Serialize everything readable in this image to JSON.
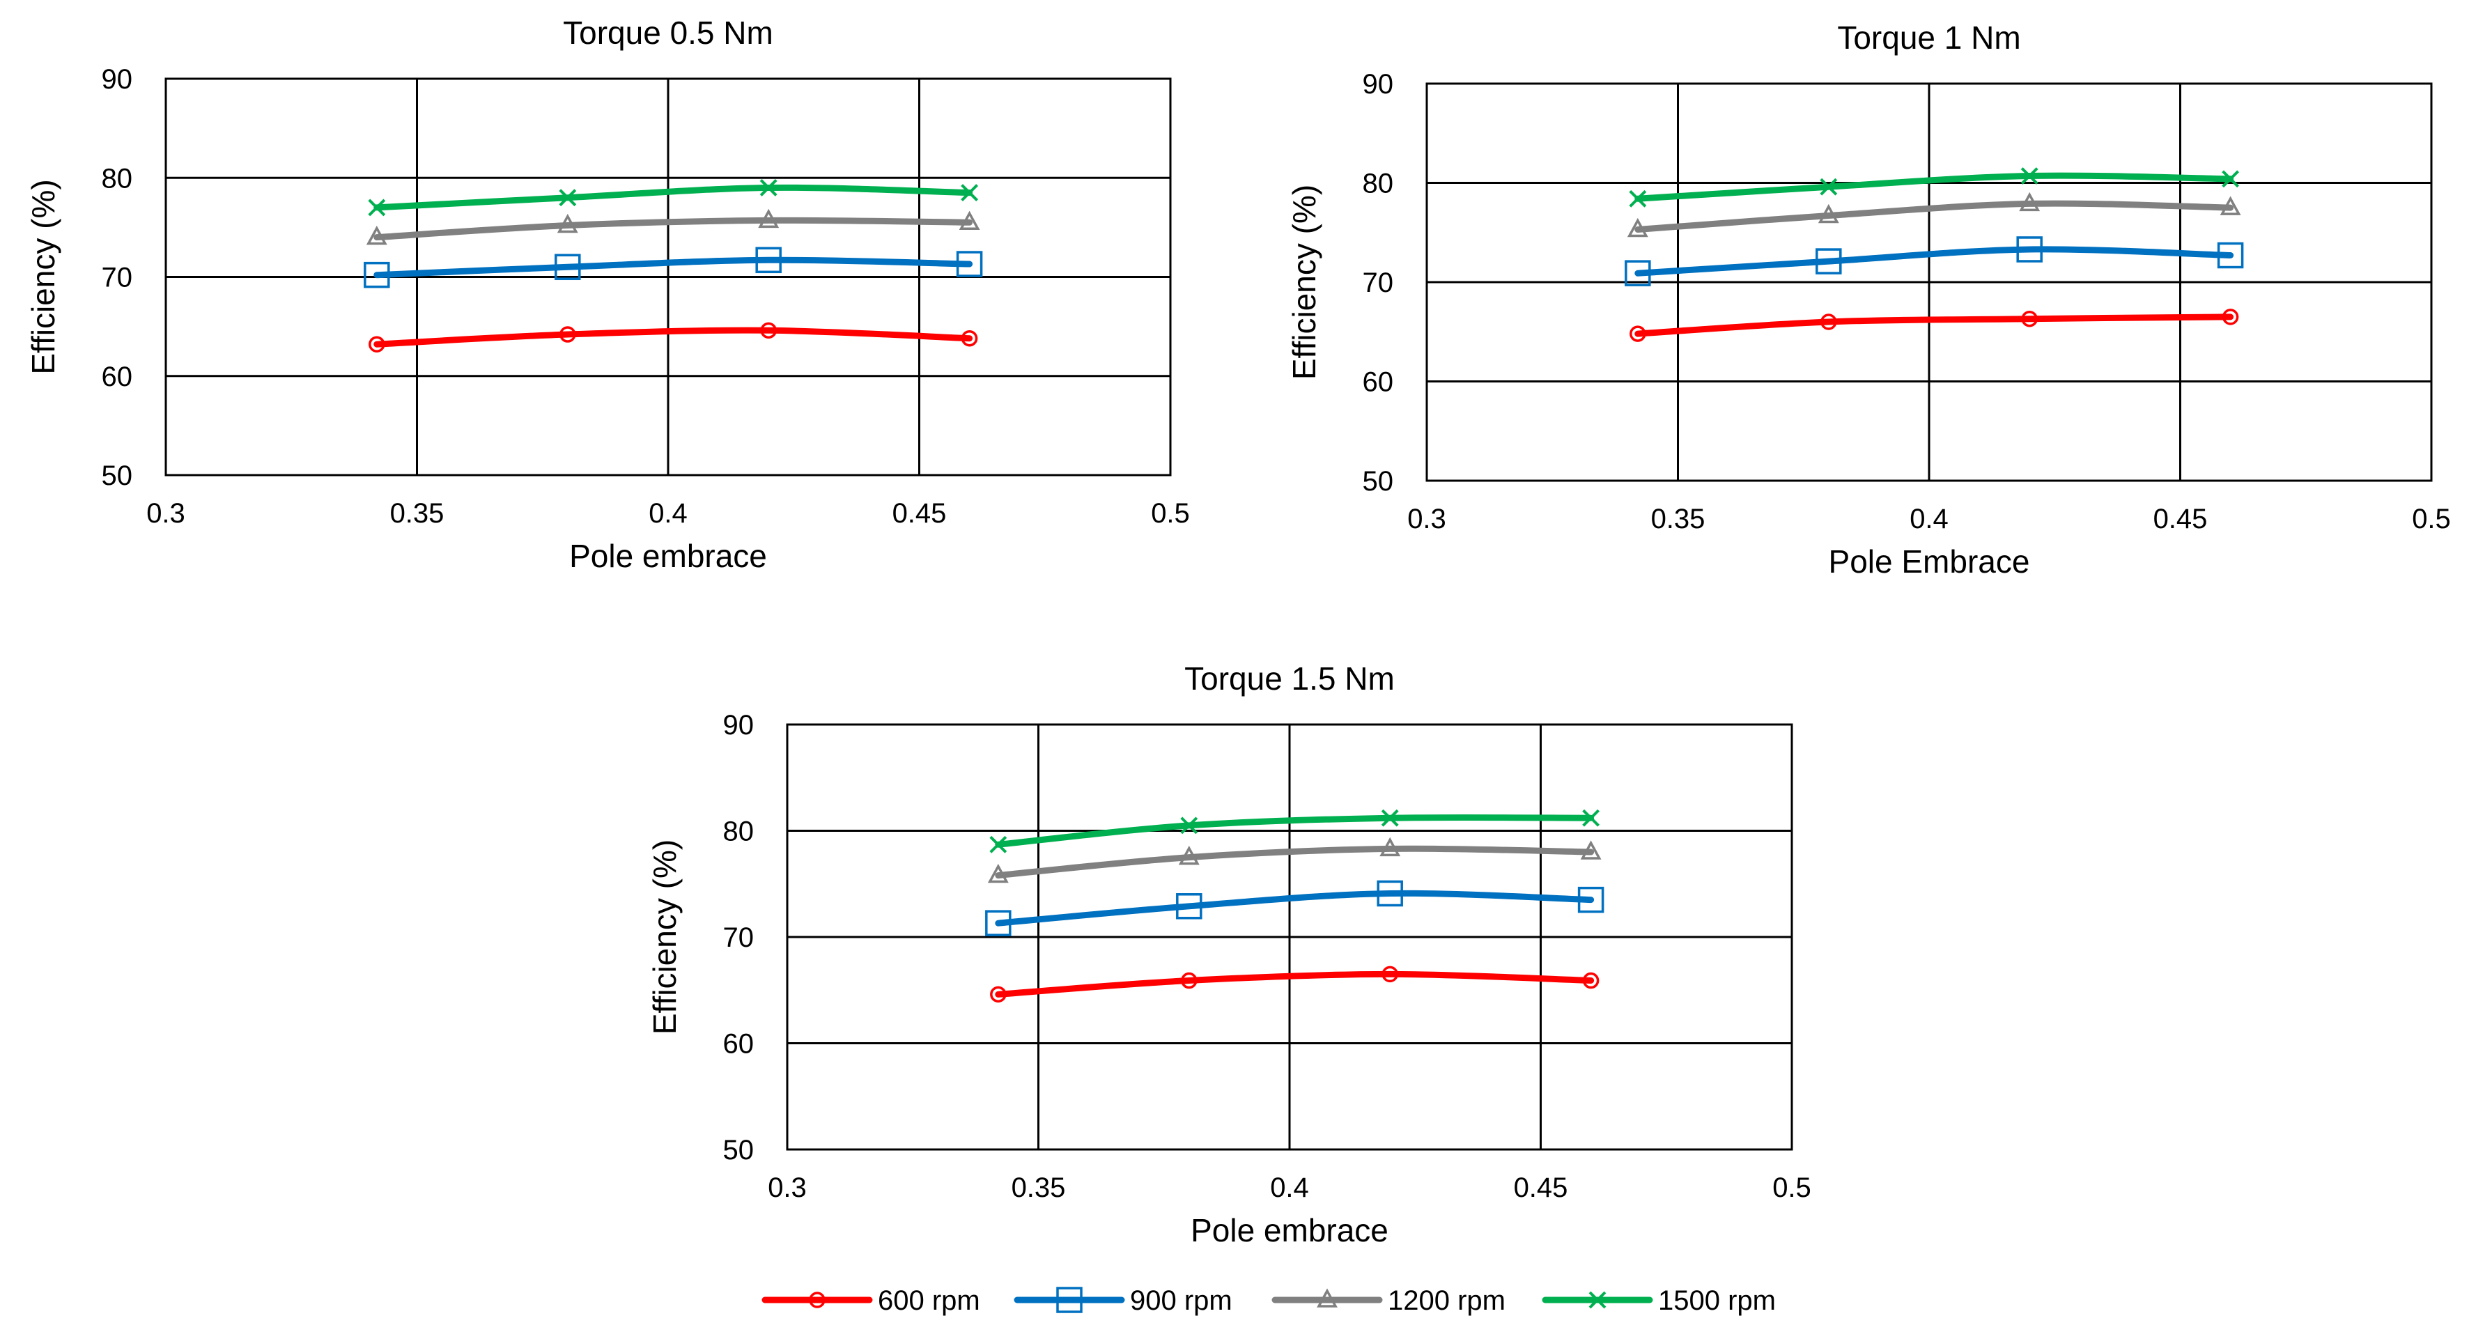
{
  "chart_data": [
    {
      "type": "line",
      "title": "Torque 0.5 Nm",
      "xlabel": "Pole embrace",
      "ylabel": "Efficiency (%)",
      "xlim": [
        0.3,
        0.5
      ],
      "ylim": [
        50,
        90
      ],
      "x_ticks": [
        "0.3",
        "0.35",
        "0.4",
        "0.45",
        "0.5"
      ],
      "y_ticks": [
        "50",
        "60",
        "70",
        "80",
        "90"
      ],
      "grid": true,
      "x": [
        0.342,
        0.38,
        0.42,
        0.46
      ],
      "series": [
        {
          "name": "600 rpm",
          "values": [
            63.2,
            64.2,
            64.6,
            63.8
          ]
        },
        {
          "name": "900 rpm",
          "values": [
            70.2,
            71.0,
            71.7,
            71.3
          ]
        },
        {
          "name": "1200 rpm",
          "values": [
            74.0,
            75.2,
            75.7,
            75.5
          ]
        },
        {
          "name": "1500 rpm",
          "values": [
            77.0,
            78.0,
            79.0,
            78.5
          ]
        }
      ]
    },
    {
      "type": "line",
      "title": "Torque 1 Nm",
      "xlabel": "Pole Embrace",
      "ylabel": "Efficiency (%)",
      "xlim": [
        0.3,
        0.5
      ],
      "ylim": [
        50,
        90
      ],
      "x_ticks": [
        "0.3",
        "0.35",
        "0.4",
        "0.45",
        "0.5"
      ],
      "y_ticks": [
        "50",
        "60",
        "70",
        "80",
        "90"
      ],
      "grid": true,
      "x": [
        0.342,
        0.38,
        0.42,
        0.46
      ],
      "series": [
        {
          "name": "600 rpm",
          "values": [
            64.8,
            66.0,
            66.3,
            66.5
          ]
        },
        {
          "name": "900 rpm",
          "values": [
            70.9,
            72.1,
            73.3,
            72.7
          ]
        },
        {
          "name": "1200 rpm",
          "values": [
            75.3,
            76.7,
            77.9,
            77.5
          ]
        },
        {
          "name": "1500 rpm",
          "values": [
            78.4,
            79.6,
            80.7,
            80.4
          ]
        }
      ]
    },
    {
      "type": "line",
      "title": "Torque 1.5 Nm",
      "xlabel": "Pole embrace",
      "ylabel": "Efficiency (%)",
      "xlim": [
        0.3,
        0.5
      ],
      "ylim": [
        50,
        90
      ],
      "x_ticks": [
        "0.3",
        "0.35",
        "0.4",
        "0.45",
        "0.5"
      ],
      "y_ticks": [
        "50",
        "60",
        "70",
        "80",
        "90"
      ],
      "grid": true,
      "x": [
        0.342,
        0.38,
        0.42,
        0.46
      ],
      "series": [
        {
          "name": "600 rpm",
          "values": [
            64.6,
            65.9,
            66.5,
            65.9
          ]
        },
        {
          "name": "900 rpm",
          "values": [
            71.3,
            72.9,
            74.1,
            73.5
          ]
        },
        {
          "name": "1200 rpm",
          "values": [
            75.8,
            77.5,
            78.3,
            78.0
          ]
        },
        {
          "name": "1500 rpm",
          "values": [
            78.7,
            80.5,
            81.2,
            81.2
          ]
        }
      ]
    }
  ],
  "legend": {
    "placement": "bottom-center",
    "items": [
      {
        "label": "600 rpm",
        "color": "#ff0000",
        "marker": "circle"
      },
      {
        "label": "900 rpm",
        "color": "#0070c0",
        "marker": "square"
      },
      {
        "label": "1200 rpm",
        "color": "#808080",
        "marker": "triangle"
      },
      {
        "label": "1500 rpm",
        "color": "#00b050",
        "marker": "x-cross"
      }
    ]
  }
}
